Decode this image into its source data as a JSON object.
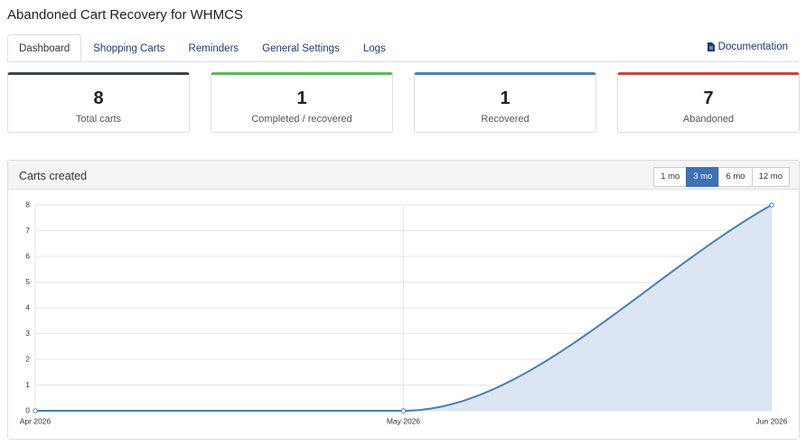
{
  "header": {
    "title": "Abandoned Cart Recovery for WHMCS"
  },
  "tabs": {
    "items": [
      "Dashboard",
      "Shopping Carts",
      "Reminders",
      "General Settings",
      "Logs"
    ],
    "active": 0
  },
  "documentation": "Documentation",
  "stats": [
    {
      "value": 8,
      "label": "Total carts",
      "color": "#3b4350"
    },
    {
      "value": 1,
      "label": "Completed / recovered",
      "color": "#5cb85c"
    },
    {
      "value": 1,
      "label": "Recovered",
      "color": "#4a7fb5"
    },
    {
      "value": 7,
      "label": "Abandoned",
      "color": "#c9463d"
    }
  ],
  "chart_panel": {
    "title": "Carts created",
    "ranges": [
      "1 mo",
      "3 mo",
      "6 mo",
      "12 mo"
    ],
    "active_range": 1
  },
  "chart_data": {
    "type": "line",
    "x": [
      "Apr 2026",
      "May 2026",
      "Jun 2026"
    ],
    "values": [
      0,
      0,
      8
    ],
    "color": "#4a7fb5",
    "area_color": "#dce6f2",
    "ylim": [
      0,
      8
    ],
    "yticks": [
      0,
      1,
      2,
      3,
      4,
      5,
      6,
      7,
      8
    ],
    "grid": true
  }
}
